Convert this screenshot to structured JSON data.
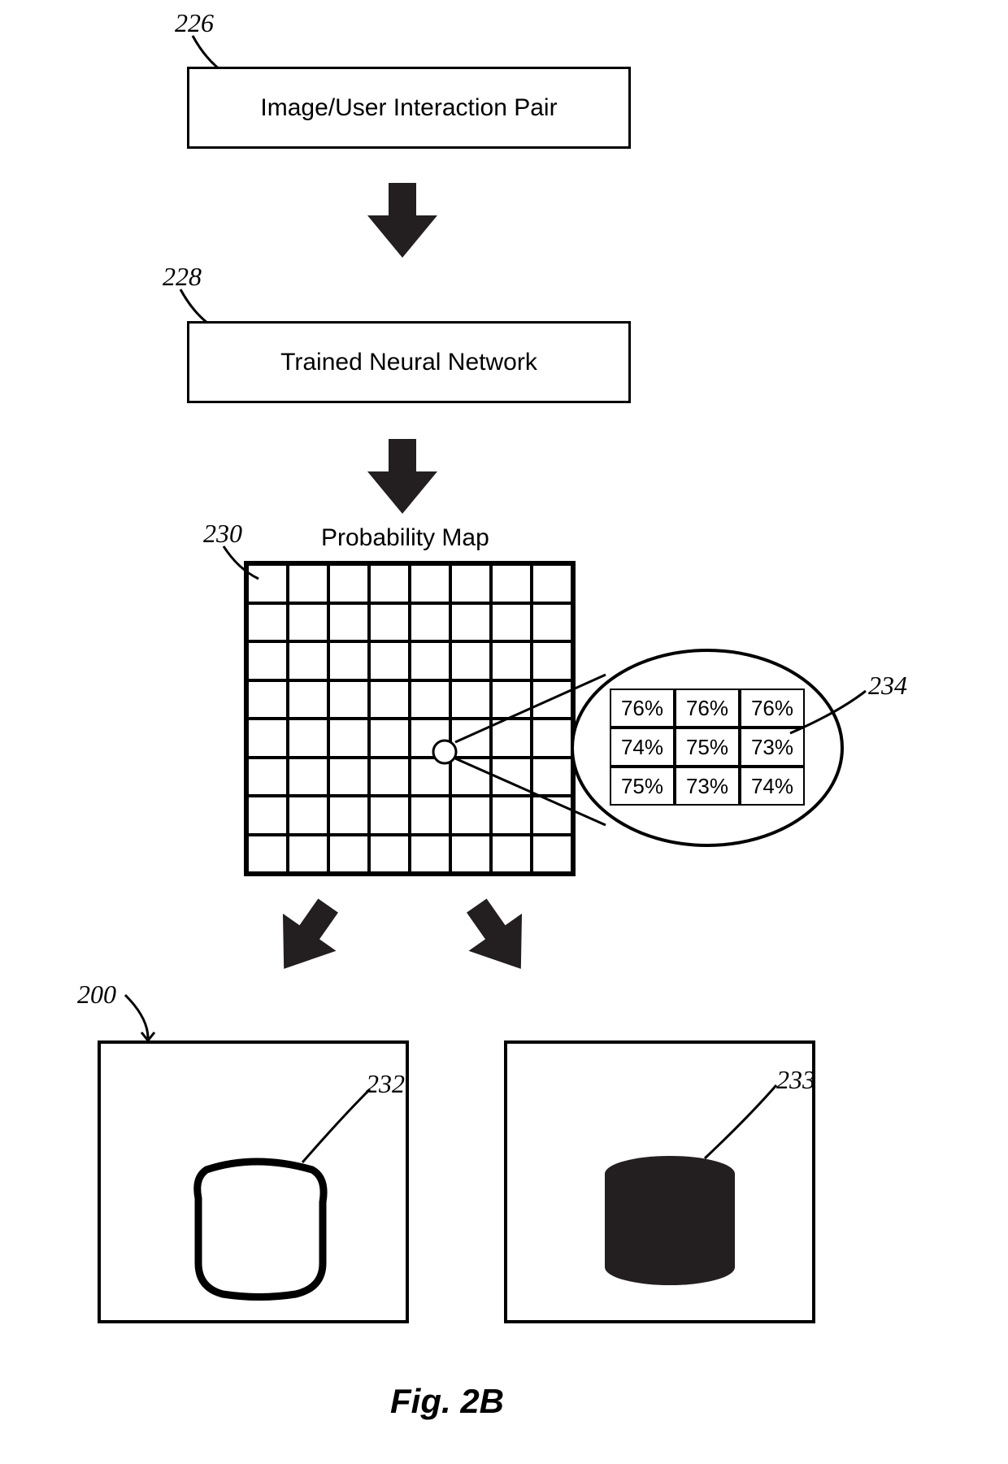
{
  "refs": {
    "r226": "226",
    "r228": "228",
    "r230": "230",
    "r234": "234",
    "r200": "200",
    "r232": "232",
    "r233": "233"
  },
  "boxes": {
    "pair": "Image/User Interaction Pair",
    "nn": "Trained Neural Network"
  },
  "probmap": {
    "title": "Probability Map",
    "rows": 8,
    "cols": 8,
    "zoom": {
      "cells": [
        [
          "76%",
          "76%",
          "76%"
        ],
        [
          "74%",
          "75%",
          "73%"
        ],
        [
          "75%",
          "73%",
          "74%"
        ]
      ]
    }
  },
  "figure_label": "Fig. 2B",
  "colors": {
    "stroke": "#000000",
    "fill_dark": "#231f20",
    "background": "#ffffff"
  }
}
